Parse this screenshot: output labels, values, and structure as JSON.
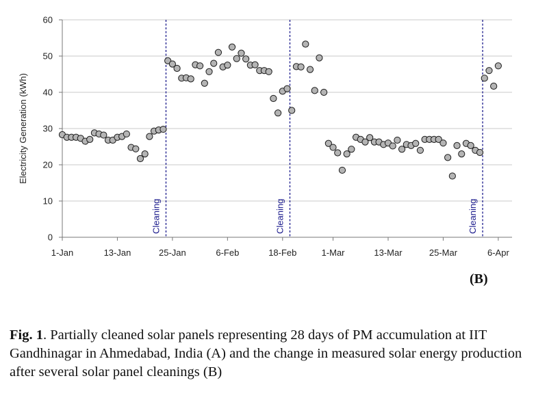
{
  "chart_data": {
    "type": "scatter",
    "title": "",
    "xlabel": "",
    "ylabel": "Electricity Generation (kWh)",
    "ylim": [
      0,
      60
    ],
    "yticks": [
      0,
      10,
      20,
      30,
      40,
      50,
      60
    ],
    "xlim": [
      "2013-01-01",
      "2013-04-09"
    ],
    "xticks": [
      {
        "date": "2013-01-01",
        "label": "1-Jan"
      },
      {
        "date": "2013-01-13",
        "label": "13-Jan"
      },
      {
        "date": "2013-01-25",
        "label": "25-Jan"
      },
      {
        "date": "2013-02-06",
        "label": "6-Feb"
      },
      {
        "date": "2013-02-18",
        "label": "18-Feb"
      },
      {
        "date": "2013-03-01",
        "label": "1-Mar"
      },
      {
        "date": "2013-03-13",
        "label": "13-Mar"
      },
      {
        "date": "2013-03-25",
        "label": "25-Mar"
      },
      {
        "date": "2013-04-06",
        "label": "6-Apr"
      }
    ],
    "grid": "horizontal",
    "marker_color": "#b4b4b4",
    "cleaning_line_color": "#1a1a8c",
    "cleaning_events": [
      {
        "date": "2013-01-23",
        "label": "Cleaning"
      },
      {
        "date": "2013-02-19",
        "label": "Cleaning"
      },
      {
        "date": "2013-04-02",
        "label": "Cleaning"
      }
    ],
    "points": [
      [
        "2013-01-01",
        28.3
      ],
      [
        "2013-01-02",
        27.6
      ],
      [
        "2013-01-03",
        27.6
      ],
      [
        "2013-01-04",
        27.6
      ],
      [
        "2013-01-05",
        27.3
      ],
      [
        "2013-01-06",
        26.5
      ],
      [
        "2013-01-07",
        27.0
      ],
      [
        "2013-01-08",
        28.8
      ],
      [
        "2013-01-09",
        28.5
      ],
      [
        "2013-01-10",
        28.2
      ],
      [
        "2013-01-11",
        26.8
      ],
      [
        "2013-01-12",
        26.8
      ],
      [
        "2013-01-13",
        27.6
      ],
      [
        "2013-01-14",
        27.8
      ],
      [
        "2013-01-15",
        28.5
      ],
      [
        "2013-01-16",
        24.8
      ],
      [
        "2013-01-17",
        24.4
      ],
      [
        "2013-01-18",
        21.7
      ],
      [
        "2013-01-19",
        23.0
      ],
      [
        "2013-01-20",
        27.8
      ],
      [
        "2013-01-21",
        29.3
      ],
      [
        "2013-01-22",
        29.6
      ],
      [
        "2013-01-23",
        29.8
      ],
      [
        "2013-01-24",
        48.7
      ],
      [
        "2013-01-25",
        47.8
      ],
      [
        "2013-01-26",
        46.6
      ],
      [
        "2013-01-27",
        43.9
      ],
      [
        "2013-01-28",
        44.0
      ],
      [
        "2013-01-29",
        43.7
      ],
      [
        "2013-01-30",
        47.6
      ],
      [
        "2013-01-31",
        47.3
      ],
      [
        "2013-02-01",
        42.5
      ],
      [
        "2013-02-02",
        45.7
      ],
      [
        "2013-02-03",
        48.0
      ],
      [
        "2013-02-04",
        51.0
      ],
      [
        "2013-02-05",
        47.0
      ],
      [
        "2013-02-06",
        47.5
      ],
      [
        "2013-02-07",
        52.5
      ],
      [
        "2013-02-08",
        49.3
      ],
      [
        "2013-02-09",
        50.8
      ],
      [
        "2013-02-10",
        49.2
      ],
      [
        "2013-02-11",
        47.5
      ],
      [
        "2013-02-12",
        47.6
      ],
      [
        "2013-02-13",
        46.0
      ],
      [
        "2013-02-14",
        46.0
      ],
      [
        "2013-02-15",
        45.7
      ],
      [
        "2013-02-16",
        38.3
      ],
      [
        "2013-02-17",
        34.3
      ],
      [
        "2013-02-18",
        40.3
      ],
      [
        "2013-02-19",
        41.0
      ],
      [
        "2013-02-20",
        35.0
      ],
      [
        "2013-02-21",
        47.1
      ],
      [
        "2013-02-22",
        47.0
      ],
      [
        "2013-02-23",
        53.3
      ],
      [
        "2013-02-24",
        46.3
      ],
      [
        "2013-02-25",
        40.5
      ],
      [
        "2013-02-26",
        49.5
      ],
      [
        "2013-02-27",
        40.0
      ],
      [
        "2013-02-28",
        25.9
      ],
      [
        "2013-03-01",
        24.8
      ],
      [
        "2013-03-02",
        23.3
      ],
      [
        "2013-03-03",
        18.5
      ],
      [
        "2013-03-04",
        23.0
      ],
      [
        "2013-03-05",
        24.3
      ],
      [
        "2013-03-06",
        27.6
      ],
      [
        "2013-03-07",
        27.0
      ],
      [
        "2013-03-08",
        26.3
      ],
      [
        "2013-03-09",
        27.5
      ],
      [
        "2013-03-10",
        26.3
      ],
      [
        "2013-03-11",
        26.3
      ],
      [
        "2013-03-12",
        25.6
      ],
      [
        "2013-03-13",
        26.0
      ],
      [
        "2013-03-14",
        25.2
      ],
      [
        "2013-03-15",
        26.8
      ],
      [
        "2013-03-16",
        24.3
      ],
      [
        "2013-03-17",
        25.6
      ],
      [
        "2013-03-18",
        25.3
      ],
      [
        "2013-03-19",
        25.9
      ],
      [
        "2013-03-20",
        24.0
      ],
      [
        "2013-03-21",
        27.0
      ],
      [
        "2013-03-22",
        27.0
      ],
      [
        "2013-03-23",
        27.0
      ],
      [
        "2013-03-24",
        27.0
      ],
      [
        "2013-03-25",
        26.0
      ],
      [
        "2013-03-26",
        22.0
      ],
      [
        "2013-03-27",
        16.9
      ],
      [
        "2013-03-28",
        25.3
      ],
      [
        "2013-03-29",
        23.0
      ],
      [
        "2013-03-30",
        25.9
      ],
      [
        "2013-03-31",
        25.3
      ],
      [
        "2013-04-01",
        24.0
      ],
      [
        "2013-04-02",
        23.4
      ],
      [
        "2013-04-03",
        43.9
      ],
      [
        "2013-04-04",
        46.0
      ],
      [
        "2013-04-05",
        41.7
      ],
      [
        "2013-04-06",
        47.3
      ]
    ]
  },
  "panel_label": "(B)",
  "caption": {
    "fig_label": "Fig. 1",
    "text": ". Partially cleaned solar panels representing 28 days of PM accumulation at IIT Gandhinagar in Ahmedabad, India (A) and the change in measured solar energy production after several solar panel cleanings (B)"
  }
}
